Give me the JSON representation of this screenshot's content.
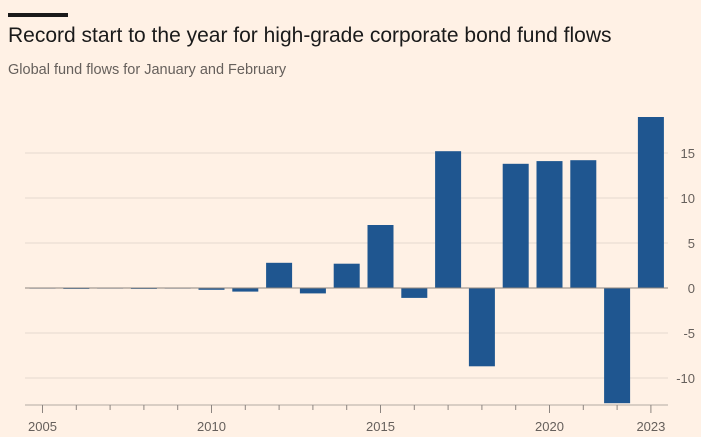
{
  "header": {
    "title": "Record start to the year for high-grade corporate bond fund flows",
    "subtitle": "Global fund flows for January and February"
  },
  "chart_data": {
    "type": "bar",
    "title": "Record start to the year for high-grade corporate bond fund flows",
    "subtitle": "Global fund flows for January and February",
    "categories": [
      2005,
      2006,
      2007,
      2008,
      2009,
      2010,
      2011,
      2012,
      2013,
      2014,
      2015,
      2016,
      2017,
      2018,
      2019,
      2020,
      2021,
      2022,
      2023
    ],
    "values": [
      0.0,
      -0.1,
      0.0,
      -0.1,
      -0.05,
      -0.2,
      -0.4,
      2.8,
      -0.6,
      2.7,
      7.0,
      -1.1,
      15.2,
      -8.7,
      13.8,
      14.1,
      14.2,
      -12.8,
      19.0
    ],
    "x_tick_labels": [
      "2005",
      "2010",
      "2015",
      "2020",
      "2023"
    ],
    "y_ticks": [
      15,
      10,
      5,
      0,
      -5,
      -10
    ],
    "y_tick_labels": [
      "15",
      "10",
      "5",
      "0",
      "-5",
      "-10"
    ],
    "ylim": [
      -12.8,
      19.0
    ],
    "grid": true,
    "y_axis_side": "right",
    "bar_color": "#1f5690",
    "grid_color": "#e6d9ce",
    "zero_line_color": "#8c8580"
  }
}
